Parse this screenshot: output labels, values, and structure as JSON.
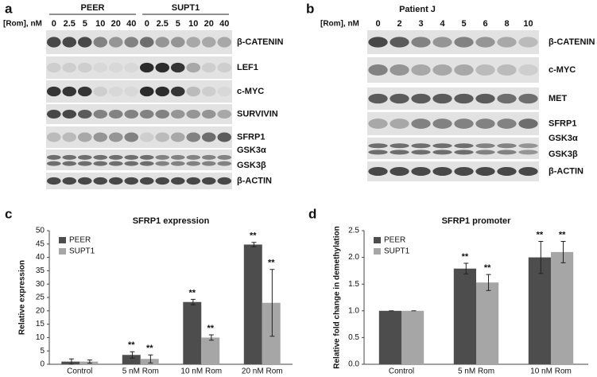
{
  "panel_a": {
    "panel_label": "a",
    "dose_title": "[Rom], nM",
    "groups": [
      "PEER",
      "SUPT1"
    ],
    "doses": [
      "0",
      "2.5",
      "5",
      "10",
      "20",
      "40",
      "0",
      "2.5",
      "5",
      "10",
      "20",
      "40"
    ],
    "rows": [
      [
        "β-CATENIN"
      ],
      [
        "LEF1"
      ],
      [
        "c-MYC"
      ],
      [
        "SURVIVIN"
      ],
      [
        "SFRP1"
      ],
      [
        "GSK3α",
        "GSK3β"
      ],
      [
        "β-ACTIN"
      ]
    ]
  },
  "panel_b": {
    "panel_label": "b",
    "title": "Patient J",
    "dose_title": "[Rom], nM",
    "doses": [
      "0",
      "2",
      "3",
      "4",
      "5",
      "6",
      "8",
      "10"
    ],
    "rows": [
      [
        "β-CATENIN"
      ],
      [
        "c-MYC"
      ],
      [
        "MET"
      ],
      [
        "SFRP1"
      ],
      [
        "GSK3α",
        "GSK3β"
      ],
      [
        "β-ACTIN"
      ]
    ]
  },
  "chart_data": [
    {
      "type": "bar",
      "panel_label": "c",
      "title": "SFRP1 expression",
      "y_label": "Relative expression",
      "categories": [
        "Control",
        "5 nM Rom",
        "10 nM Rom",
        "20 nM Rom"
      ],
      "series": [
        {
          "name": "PEER",
          "color": "#4d4d4d",
          "values": [
            1,
            3.5,
            23.3,
            44.8
          ],
          "errors": [
            1,
            1.2,
            1,
            0.8
          ],
          "annotations": [
            null,
            "**",
            "**",
            "**"
          ]
        },
        {
          "name": "SUPT1",
          "color": "#a6a6a6",
          "values": [
            1,
            2,
            10,
            23
          ],
          "errors": [
            0.6,
            1.5,
            1,
            12.5
          ],
          "annotations": [
            null,
            "**",
            "**",
            "**"
          ]
        }
      ],
      "ylim": [
        0,
        50
      ],
      "yticks": [
        0,
        5,
        10,
        15,
        20,
        25,
        30,
        35,
        40,
        45,
        50
      ],
      "legend": "top-left"
    },
    {
      "type": "bar",
      "panel_label": "d",
      "title": "SFRP1 promoter",
      "y_label": "Relative fold change in demethylation",
      "categories": [
        "Control",
        "5 nM Rom",
        "10 nM Rom"
      ],
      "series": [
        {
          "name": "PEER",
          "color": "#4d4d4d",
          "values": [
            1,
            1.79,
            2.0
          ],
          "errors": [
            0,
            0.1,
            0.3
          ],
          "annotations": [
            null,
            "**",
            "**"
          ]
        },
        {
          "name": "SUPT1",
          "color": "#a6a6a6",
          "values": [
            1,
            1.53,
            2.1
          ],
          "errors": [
            0,
            0.15,
            0.2
          ],
          "annotations": [
            null,
            "**",
            "**"
          ]
        }
      ],
      "ylim": [
        0,
        2.5
      ],
      "yticks": [
        {
          "value": 0,
          "label": "0.0"
        },
        {
          "value": 0.5,
          "label": "0.5"
        },
        {
          "value": 1,
          "label": "1.0"
        },
        {
          "value": 1.5,
          "label": "1.5"
        },
        {
          "value": 2,
          "label": "2.0"
        },
        {
          "value": 2.5,
          "label": "2.5"
        }
      ],
      "legend": "top-left"
    }
  ]
}
